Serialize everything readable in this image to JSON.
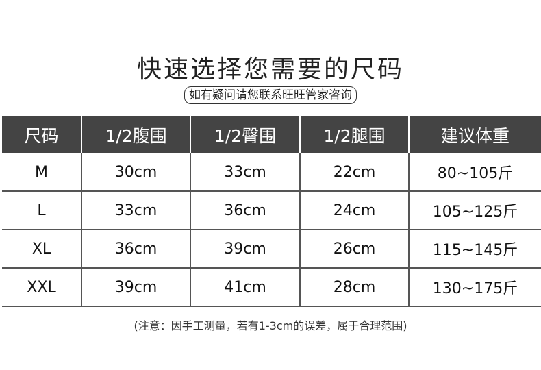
{
  "title": "快速选择您需要的尺码",
  "subtitle": "如有疑问请您联系旺旺管家咨询",
  "table": {
    "headers": [
      "尺码",
      "1/2腹围",
      "1/2臀围",
      "1/2腿围",
      "建议体重"
    ],
    "rows": [
      [
        "M",
        "30cm",
        "33cm",
        "22cm",
        "80~105斤"
      ],
      [
        "L",
        "33cm",
        "36cm",
        "24cm",
        "105~125斤"
      ],
      [
        "XL",
        "36cm",
        "39cm",
        "26cm",
        "115~145斤"
      ],
      [
        "XXL",
        "39cm",
        "41cm",
        "28cm",
        "130~175斤"
      ]
    ]
  },
  "note": "(注意：因手工测量，若有1-3cm的误差，属于合理范围)",
  "colors": {
    "header_bg": "#444444",
    "grid_line": "#555555"
  }
}
